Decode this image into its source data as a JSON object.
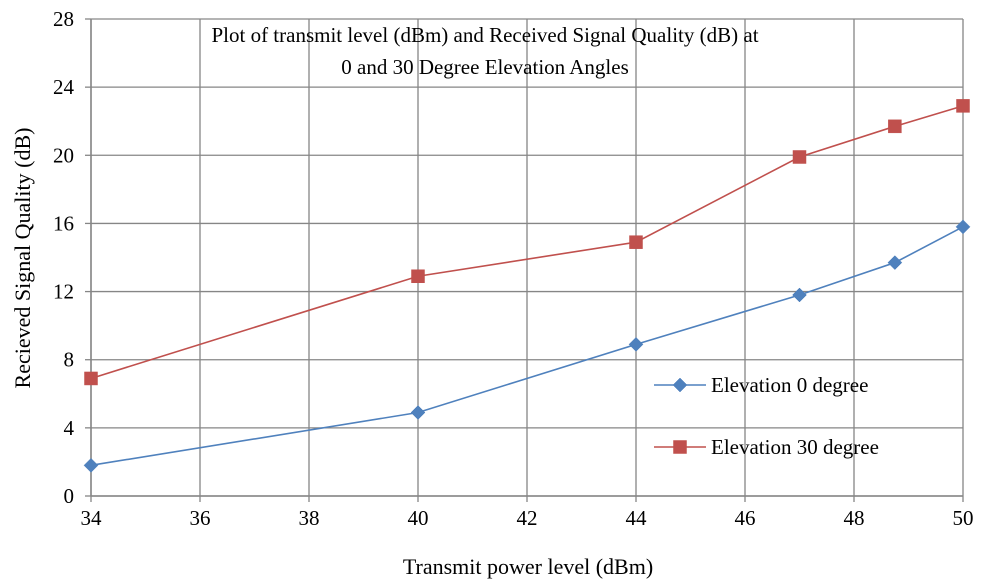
{
  "chart_data": {
    "type": "line",
    "title_lines": [
      "Plot of transmit level (dBm) and Received Signal Quality (dB) at",
      "0 and 30 Degree Elevation Angles"
    ],
    "xlabel": "Transmit power level (dBm)",
    "ylabel": "Recieved Signal Quality (dB)",
    "xlim": [
      34,
      50
    ],
    "ylim": [
      0,
      28
    ],
    "x_ticks": [
      "34",
      "36",
      "38",
      "40",
      "42",
      "44",
      "46",
      "48",
      "50"
    ],
    "y_ticks": [
      "0",
      "4",
      "8",
      "12",
      "16",
      "20",
      "24",
      "28"
    ],
    "grid": true,
    "legend_position": "right",
    "series": [
      {
        "name": "Elevation 0 degree",
        "color": "#4F81BD",
        "marker": "diamond",
        "x": [
          34,
          40,
          44,
          47,
          48.75,
          50
        ],
        "values": [
          1.8,
          4.9,
          8.9,
          11.8,
          13.7,
          15.8
        ]
      },
      {
        "name": "Elevation 30 degree",
        "color": "#C0504D",
        "marker": "square",
        "x": [
          34,
          40,
          44,
          47,
          48.75,
          50
        ],
        "values": [
          6.9,
          12.9,
          14.9,
          19.9,
          21.7,
          22.9
        ]
      }
    ]
  }
}
